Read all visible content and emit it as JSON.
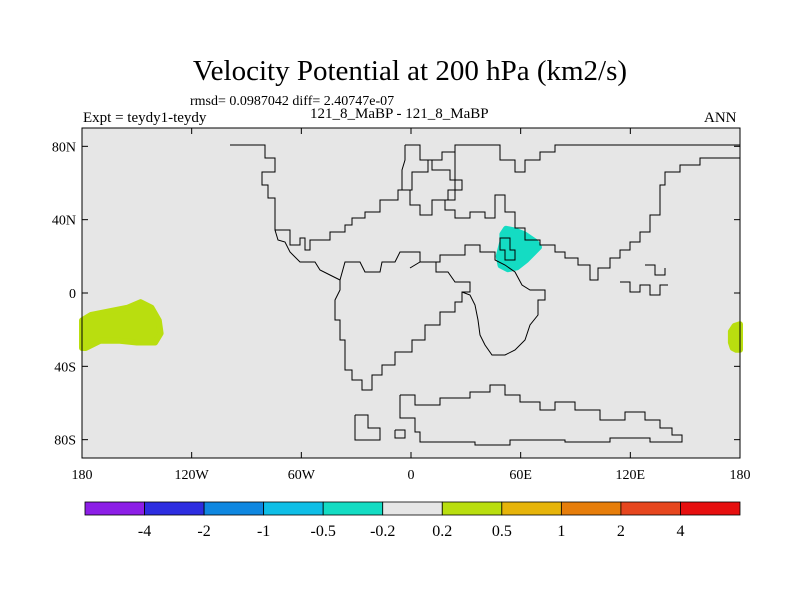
{
  "header": {
    "title": "Velocity Potential at 200 hPa (km2/s)",
    "stats": "rmsd= 0.0987042 diff= 2.40747e-07",
    "expt": "Expt = teydy1-teydy",
    "case": "121_8_MaBP - 121_8_MaBP",
    "season": "ANN"
  },
  "chart_data": {
    "type": "heatmap",
    "title": "Velocity Potential at 200 hPa (km2/s)",
    "xlabel": "",
    "ylabel": "",
    "xlim": [
      -180,
      180
    ],
    "ylim": [
      -90,
      90
    ],
    "grid": false,
    "legend": "bottom",
    "x_ticks": [
      {
        "value": -180,
        "label": "180"
      },
      {
        "value": -120,
        "label": "120W"
      },
      {
        "value": -60,
        "label": "60W"
      },
      {
        "value": 0,
        "label": "0"
      },
      {
        "value": 60,
        "label": "60E"
      },
      {
        "value": 120,
        "label": "120E"
      },
      {
        "value": 180,
        "label": "180"
      }
    ],
    "y_ticks": [
      {
        "value": 80,
        "label": "80N"
      },
      {
        "value": 40,
        "label": "40N"
      },
      {
        "value": 0,
        "label": "0"
      },
      {
        "value": -40,
        "label": "40S"
      },
      {
        "value": -80,
        "label": "80S"
      }
    ],
    "background_color": "#e6e6e6",
    "colorbar": {
      "levels": [
        "-4",
        "-2",
        "-1",
        "-0.5",
        "-0.2",
        "0.2",
        "0.5",
        "1",
        "2",
        "4"
      ],
      "colors": [
        "#8c1ee6",
        "#2d2de0",
        "#0f87e0",
        "#0fbee6",
        "#14dcc3",
        "#e6e6e6",
        "#b9de0f",
        "#e6b40a",
        "#e67d0a",
        "#e6461e",
        "#e60f0f"
      ]
    },
    "regions": [
      {
        "name": "positive-region-west-pacific",
        "bin": "0.2 to 0.5",
        "color": "#b9de0f",
        "lon": [
          -180,
          -175,
          -165,
          -155,
          -148,
          -142,
          -138,
          -137,
          -140,
          -150,
          -160,
          -170,
          -178,
          -180
        ],
        "lat": [
          -15,
          -12,
          -10,
          -8,
          -5,
          -8,
          -15,
          -22,
          -27,
          -27,
          -26,
          -26,
          -30,
          -30
        ]
      },
      {
        "name": "positive-region-east-edge",
        "bin": "0.2 to 0.5",
        "color": "#b9de0f",
        "lon": [
          180,
          177,
          175,
          175,
          176,
          178,
          180
        ],
        "lat": [
          -17,
          -18,
          -21,
          -27,
          -30,
          -31,
          -31
        ]
      },
      {
        "name": "negative-region-middle-east",
        "bin": "-0.5 to -0.2",
        "color": "#14dcc3",
        "lon": [
          50,
          52,
          57,
          62,
          68,
          70,
          67,
          63,
          58,
          53,
          49,
          48,
          50
        ],
        "lat": [
          32,
          35,
          34,
          32,
          28,
          25,
          22,
          18,
          14,
          13,
          15,
          20,
          28
        ]
      }
    ]
  }
}
